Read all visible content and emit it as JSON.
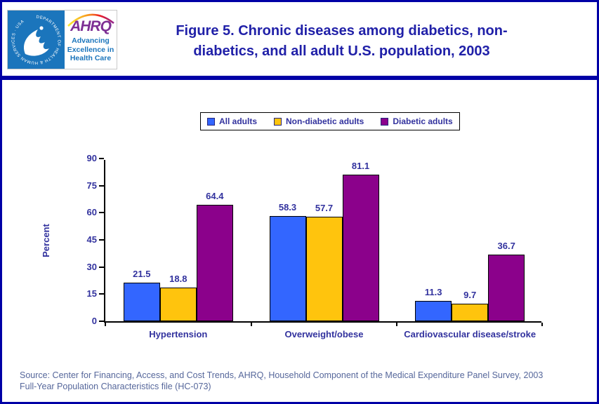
{
  "header": {
    "title_line1": "Figure 5. Chronic diseases among diabetics, non-",
    "title_line2": "diabetics, and all adult U.S. population, 2003",
    "logo": {
      "hhs_ring_text": "DEPARTMENT OF HEALTH & HUMAN SERVICES · USA",
      "ahrq_acronym": "AHRQ",
      "ahrq_tagline": [
        "Advancing",
        "Excellence in",
        "Health Care"
      ]
    }
  },
  "chart_data": {
    "type": "bar",
    "categories": [
      "Hypertension",
      "Overweight/obese",
      "Cardiovascular disease/stroke"
    ],
    "series": [
      {
        "name": "All adults",
        "color": "#3366FF",
        "values": [
          21.5,
          58.3,
          11.3
        ]
      },
      {
        "name": "Non-diabetic adults",
        "color": "#FFC40D",
        "values": [
          18.8,
          57.7,
          9.7
        ]
      },
      {
        "name": "Diabetic adults",
        "color": "#8B018B",
        "values": [
          64.4,
          81.1,
          36.7
        ]
      }
    ],
    "ylabel": "Percent",
    "ylim": [
      0,
      90
    ],
    "ytick_step": 15,
    "grid": false,
    "legend_position": "top-center",
    "value_labels": true
  },
  "footer": {
    "source_line1": "Source: Center for Financing, Access, and Cost Trends, AHRQ, Household Component of the Medical Expenditure Panel Survey, 2003",
    "source_line2": "Full-Year Population Characteristics file (HC-073)"
  },
  "colors": {
    "page_border": "#0000A6",
    "title_text": "#2020A8",
    "chart_text": "#32329E",
    "source_text": "#56679B",
    "hhs_blue": "#1B75BC",
    "ahrq_purple": "#7D2F94",
    "axis": "#000000"
  }
}
